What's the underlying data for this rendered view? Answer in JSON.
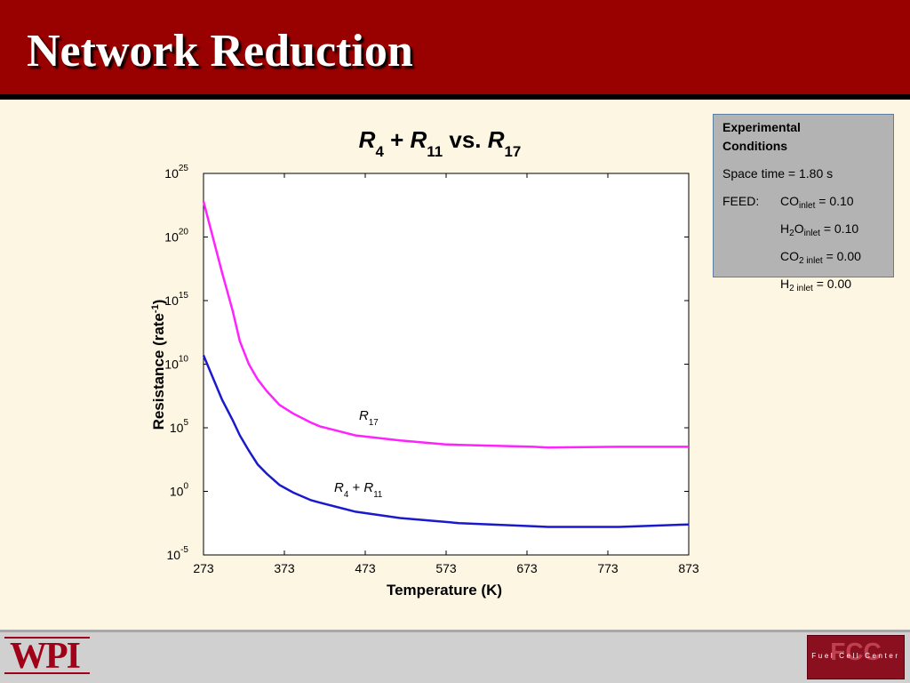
{
  "header": {
    "title": "Network Reduction"
  },
  "chart_data": {
    "type": "line",
    "title": [
      {
        "text": "R",
        "style": "italic"
      },
      {
        "text": "4",
        "style": "sub"
      },
      {
        "text": " + "
      },
      {
        "text": "R",
        "style": "italic"
      },
      {
        "text": "11",
        "style": "sub"
      },
      {
        "text": " vs. "
      },
      {
        "text": "R",
        "style": "italic"
      },
      {
        "text": "17",
        "style": "sub"
      }
    ],
    "x_label": "Temperature (K)",
    "y_label": [
      {
        "text": "Resistance (rate"
      },
      {
        "text": "-1",
        "style": "sup"
      },
      {
        "text": ")"
      }
    ],
    "log_y": true,
    "xlim": [
      273,
      873
    ],
    "xticks": [
      273,
      373,
      473,
      573,
      673,
      773,
      873
    ],
    "ylim": [
      1e-05,
      1e+25
    ],
    "yticks": [
      {
        "value": 1e-05,
        "label": "10",
        "exponent": "-5"
      },
      {
        "value": 1,
        "label": "10",
        "exponent": "0"
      },
      {
        "value": 100000.0,
        "label": "10",
        "exponent": "5"
      },
      {
        "value": 10000000000.0,
        "label": "10",
        "exponent": "10"
      },
      {
        "value": 1000000000000000.0,
        "label": "10",
        "exponent": "15"
      },
      {
        "value": 1e+20,
        "label": "10",
        "exponent": "20"
      },
      {
        "value": 1e+25,
        "label": "10",
        "exponent": "25"
      }
    ],
    "x": [
      273,
      296,
      309,
      318,
      329,
      340,
      351,
      367,
      384,
      406,
      417,
      461,
      516,
      571,
      589,
      681,
      699,
      787,
      873
    ],
    "series": [
      {
        "color": "#ff22ff",
        "values": [
          6.3e+22,
          1.6e+17,
          160000000000000.0,
          630000000000.0,
          10000000000.0,
          630000000.0,
          79000000.0,
          6300000.0,
          1300000.0,
          250000.0,
          130000.0,
          25000.0,
          10000.0,
          5000,
          4500,
          3200,
          2800,
          3200,
          3200
        ]
      },
      {
        "color": "#1a1acc",
        "values": [
          50000000000.0,
          16000000.0,
          400000.0,
          25000.0,
          1600,
          130,
          25,
          3.2,
          0.8,
          0.2,
          0.13,
          0.025,
          0.008,
          0.004,
          0.0032,
          0.0018,
          0.0016,
          0.0016,
          0.0025
        ]
      }
    ],
    "annotations": [
      [
        {
          "text": "R",
          "style": "italic"
        },
        {
          "text": "17",
          "style": "sub"
        }
      ],
      [
        {
          "text": "R",
          "style": "italic"
        },
        {
          "text": "4",
          "style": "sub"
        },
        {
          "text": " + "
        },
        {
          "text": "R",
          "style": "italic"
        },
        {
          "text": "11",
          "style": "sub"
        }
      ]
    ]
  },
  "conditions": {
    "title": "Experimental",
    "title2": "Conditions",
    "space_time": "Space time = 1.80 s",
    "feed_label": "FEED:",
    "feeds": [
      [
        {
          "text": "CO"
        },
        {
          "text": "inlet",
          "style": "sub"
        },
        {
          "text": " = 0.10"
        }
      ],
      [
        {
          "text": "H"
        },
        {
          "text": "2",
          "style": "sub"
        },
        {
          "text": "O"
        },
        {
          "text": "inlet",
          "style": "sub"
        },
        {
          "text": " = 0.10"
        }
      ],
      [
        {
          "text": "CO"
        },
        {
          "text": "2 inlet",
          "style": "sub"
        },
        {
          "text": " = 0.00"
        }
      ],
      [
        {
          "text": "H"
        },
        {
          "text": "2 inlet",
          "style": "sub"
        },
        {
          "text": " = 0.00"
        }
      ]
    ]
  },
  "footer": {
    "logo_left": "WPI",
    "logo_right": "FCC",
    "logo_right_caption": "Fuel Cell Center"
  }
}
